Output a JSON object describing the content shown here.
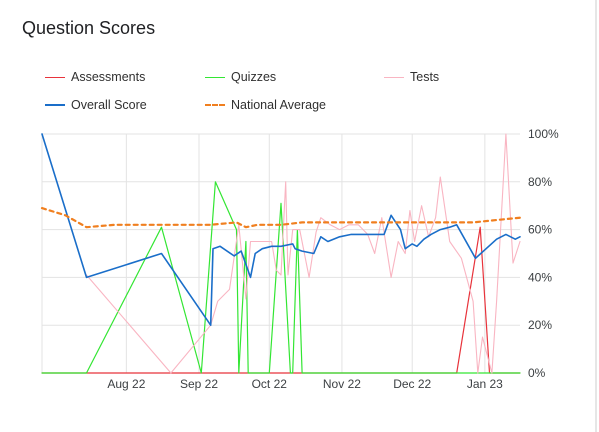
{
  "header": {
    "title": "Question Scores"
  },
  "chart_data": {
    "type": "line",
    "x_axis": {
      "type": "date",
      "min": "2022-07-10",
      "max": "2023-01-30",
      "ticks": [
        {
          "date": "2022-08-15",
          "label": "Aug 22"
        },
        {
          "date": "2022-09-15",
          "label": "Sep 22"
        },
        {
          "date": "2022-10-15",
          "label": "Oct 22"
        },
        {
          "date": "2022-11-15",
          "label": "Nov 22"
        },
        {
          "date": "2022-12-15",
          "label": "Dec 22"
        },
        {
          "date": "2023-01-15",
          "label": "Jan 23"
        }
      ]
    },
    "y_axis": {
      "position": "right",
      "ylim": [
        0,
        100
      ],
      "ticks": [
        {
          "value": 0,
          "label": "0%"
        },
        {
          "value": 20,
          "label": "20%"
        },
        {
          "value": 40,
          "label": "40%"
        },
        {
          "value": 60,
          "label": "60%"
        },
        {
          "value": 80,
          "label": "80%"
        },
        {
          "value": 100,
          "label": "100%"
        }
      ]
    },
    "grid": true,
    "legend_position": "top",
    "series": [
      {
        "name": "Assessments",
        "color": "#e8333b",
        "dash": false,
        "width": 1.2,
        "points": [
          [
            "2022-07-10",
            0
          ],
          [
            "2023-01-03",
            0
          ],
          [
            "2023-01-13",
            61
          ],
          [
            "2023-01-17",
            0
          ],
          [
            "2023-01-30",
            0
          ]
        ]
      },
      {
        "name": "Quizzes",
        "color": "#33e633",
        "dash": false,
        "width": 1.2,
        "points": [
          [
            "2022-07-10",
            0
          ],
          [
            "2022-07-29",
            0
          ],
          [
            "2022-08-30",
            61
          ],
          [
            "2022-09-16",
            0
          ],
          [
            "2022-09-22",
            80
          ],
          [
            "2022-10-01",
            60
          ],
          [
            "2022-10-02",
            0
          ],
          [
            "2022-10-05",
            55
          ],
          [
            "2022-10-06",
            0
          ],
          [
            "2022-10-15",
            0
          ],
          [
            "2022-10-20",
            71
          ],
          [
            "2022-10-24",
            0
          ],
          [
            "2022-10-25",
            0
          ],
          [
            "2022-10-27",
            60
          ],
          [
            "2022-10-29",
            0
          ],
          [
            "2023-01-30",
            0
          ]
        ]
      },
      {
        "name": "Tests",
        "color": "#f9b5c2",
        "dash": false,
        "width": 1.1,
        "points": [
          [
            "2022-07-29",
            41
          ],
          [
            "2022-09-03",
            0
          ],
          [
            "2022-09-20",
            20
          ],
          [
            "2022-09-23",
            30
          ],
          [
            "2022-09-28",
            35
          ],
          [
            "2022-10-02",
            62
          ],
          [
            "2022-10-05",
            31
          ],
          [
            "2022-10-07",
            55
          ],
          [
            "2022-10-10",
            55
          ],
          [
            "2022-10-16",
            55
          ],
          [
            "2022-10-18",
            43
          ],
          [
            "2022-10-20",
            41
          ],
          [
            "2022-10-22",
            80
          ],
          [
            "2022-10-23",
            41
          ],
          [
            "2022-10-25",
            60
          ],
          [
            "2022-10-28",
            60
          ],
          [
            "2022-11-01",
            40
          ],
          [
            "2022-11-04",
            59
          ],
          [
            "2022-11-06",
            65
          ],
          [
            "2022-11-10",
            62
          ],
          [
            "2022-11-14",
            60
          ],
          [
            "2022-11-18",
            62
          ],
          [
            "2022-11-22",
            62
          ],
          [
            "2022-11-26",
            58
          ],
          [
            "2022-11-29",
            50
          ],
          [
            "2022-12-02",
            65
          ],
          [
            "2022-12-06",
            40
          ],
          [
            "2022-12-09",
            55
          ],
          [
            "2022-12-12",
            50
          ],
          [
            "2022-12-14",
            68
          ],
          [
            "2022-12-16",
            55
          ],
          [
            "2022-12-19",
            70
          ],
          [
            "2022-12-22",
            57
          ],
          [
            "2022-12-25",
            65
          ],
          [
            "2022-12-27",
            82
          ],
          [
            "2022-12-31",
            55
          ],
          [
            "2023-01-05",
            48
          ],
          [
            "2023-01-10",
            30
          ],
          [
            "2023-01-12",
            0
          ],
          [
            "2023-01-14",
            15
          ],
          [
            "2023-01-18",
            0
          ],
          [
            "2023-01-20",
            30
          ],
          [
            "2023-01-24",
            100
          ],
          [
            "2023-01-27",
            46
          ],
          [
            "2023-01-30",
            55
          ]
        ]
      },
      {
        "name": "Overall Score",
        "color": "#1a6ec9",
        "dash": false,
        "width": 1.6,
        "points": [
          [
            "2022-07-10",
            100
          ],
          [
            "2022-07-29",
            40
          ],
          [
            "2022-08-30",
            50
          ],
          [
            "2022-09-20",
            20
          ],
          [
            "2022-09-21",
            52
          ],
          [
            "2022-09-24",
            53
          ],
          [
            "2022-09-30",
            49
          ],
          [
            "2022-10-03",
            51
          ],
          [
            "2022-10-07",
            40
          ],
          [
            "2022-10-09",
            50
          ],
          [
            "2022-10-12",
            52
          ],
          [
            "2022-10-16",
            53
          ],
          [
            "2022-10-20",
            53
          ],
          [
            "2022-10-25",
            54
          ],
          [
            "2022-10-26",
            52
          ],
          [
            "2022-10-29",
            51
          ],
          [
            "2022-11-03",
            50
          ],
          [
            "2022-11-06",
            57
          ],
          [
            "2022-11-09",
            55
          ],
          [
            "2022-11-14",
            57
          ],
          [
            "2022-11-19",
            58
          ],
          [
            "2022-11-29",
            58
          ],
          [
            "2022-12-03",
            58
          ],
          [
            "2022-12-06",
            66
          ],
          [
            "2022-12-10",
            60
          ],
          [
            "2022-12-12",
            52
          ],
          [
            "2022-12-15",
            54
          ],
          [
            "2022-12-17",
            53
          ],
          [
            "2022-12-20",
            56
          ],
          [
            "2022-12-23",
            58
          ],
          [
            "2022-12-27",
            60
          ],
          [
            "2022-12-31",
            61
          ],
          [
            "2023-01-03",
            62
          ],
          [
            "2023-01-11",
            48
          ],
          [
            "2023-01-20",
            56
          ],
          [
            "2023-01-24",
            58
          ],
          [
            "2023-01-28",
            56
          ],
          [
            "2023-01-30",
            57
          ]
        ]
      },
      {
        "name": "National Average",
        "color": "#f07f1f",
        "dash": true,
        "width": 2.2,
        "points": [
          [
            "2022-07-10",
            69
          ],
          [
            "2022-07-20",
            66
          ],
          [
            "2022-07-29",
            61
          ],
          [
            "2022-08-10",
            62
          ],
          [
            "2022-09-01",
            62
          ],
          [
            "2022-09-20",
            62
          ],
          [
            "2022-10-01",
            63
          ],
          [
            "2022-10-05",
            61
          ],
          [
            "2022-10-10",
            62
          ],
          [
            "2022-10-20",
            62
          ],
          [
            "2022-10-29",
            63
          ],
          [
            "2022-11-10",
            63
          ],
          [
            "2022-12-10",
            63
          ],
          [
            "2023-01-10",
            63
          ],
          [
            "2023-01-20",
            64
          ],
          [
            "2023-01-30",
            65
          ]
        ]
      }
    ]
  }
}
